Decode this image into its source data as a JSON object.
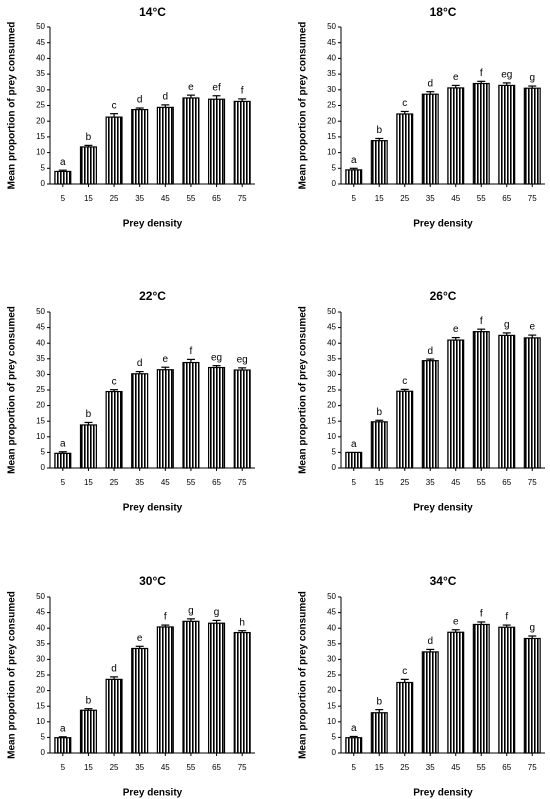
{
  "chart_data": [
    {
      "type": "bar",
      "title": "14°C",
      "xlabel": "Prey density",
      "ylabel": "Mean proportion of prey consumed",
      "categories": [
        "5",
        "15",
        "25",
        "35",
        "45",
        "55",
        "65",
        "75"
      ],
      "values": [
        4.0,
        11.8,
        21.3,
        23.7,
        24.4,
        27.4,
        27.0,
        26.3
      ],
      "errors": [
        0.4,
        0.5,
        1.1,
        0.5,
        0.8,
        0.9,
        1.1,
        0.8
      ],
      "letters": [
        "a",
        "b",
        "c",
        "d",
        "d",
        "e",
        "ef",
        "f"
      ],
      "ylim": [
        0,
        50
      ],
      "yticks": [
        0,
        5,
        10,
        15,
        20,
        25,
        30,
        35,
        40,
        45,
        50
      ],
      "grid": false,
      "bar_color": "#000000"
    },
    {
      "type": "bar",
      "title": "18°C",
      "xlabel": "Prey density",
      "ylabel": "Mean proportion of prey consumed",
      "categories": [
        "5",
        "15",
        "25",
        "35",
        "45",
        "55",
        "65",
        "75"
      ],
      "values": [
        4.5,
        13.8,
        22.3,
        28.6,
        30.6,
        32.0,
        31.4,
        30.5
      ],
      "errors": [
        0.5,
        0.7,
        0.8,
        0.8,
        0.8,
        0.7,
        0.8,
        0.7
      ],
      "letters": [
        "a",
        "b",
        "c",
        "d",
        "e",
        "f",
        "eg",
        "g"
      ],
      "ylim": [
        0,
        50
      ],
      "yticks": [
        0,
        5,
        10,
        15,
        20,
        25,
        30,
        35,
        40,
        45,
        50
      ],
      "grid": false,
      "bar_color": "#000000"
    },
    {
      "type": "bar",
      "title": "22°C",
      "xlabel": "Prey density",
      "ylabel": "Mean proportion of prey consumed",
      "categories": [
        "5",
        "15",
        "25",
        "35",
        "45",
        "55",
        "65",
        "75"
      ],
      "values": [
        4.7,
        13.8,
        24.5,
        30.2,
        31.5,
        33.8,
        32.2,
        31.4
      ],
      "errors": [
        0.5,
        0.8,
        0.6,
        0.7,
        0.8,
        1.0,
        0.6,
        0.7
      ],
      "letters": [
        "a",
        "b",
        "c",
        "d",
        "e",
        "f",
        "eg",
        "eg"
      ],
      "ylim": [
        0,
        50
      ],
      "yticks": [
        0,
        5,
        10,
        15,
        20,
        25,
        30,
        35,
        40,
        45,
        50
      ],
      "grid": false,
      "bar_color": "#000000"
    },
    {
      "type": "bar",
      "title": "26°C",
      "xlabel": "Prey density",
      "ylabel": "Mean proportion of prey consumed",
      "categories": [
        "5",
        "15",
        "25",
        "35",
        "45",
        "55",
        "65",
        "75"
      ],
      "values": [
        5.0,
        14.8,
        24.6,
        34.4,
        41.0,
        43.7,
        42.5,
        41.7
      ],
      "errors": [
        0.0,
        0.5,
        0.6,
        0.5,
        0.8,
        0.8,
        0.8,
        0.9
      ],
      "letters": [
        "a",
        "b",
        "c",
        "d",
        "e",
        "f",
        "g",
        "e"
      ],
      "ylim": [
        0,
        50
      ],
      "yticks": [
        0,
        5,
        10,
        15,
        20,
        25,
        30,
        35,
        40,
        45,
        50
      ],
      "grid": false,
      "bar_color": "#000000"
    },
    {
      "type": "bar",
      "title": "30°C",
      "xlabel": "Prey density",
      "ylabel": "Mean proportion of prey consumed",
      "categories": [
        "5",
        "15",
        "25",
        "35",
        "45",
        "55",
        "65",
        "75"
      ],
      "values": [
        4.9,
        13.7,
        23.6,
        33.5,
        40.4,
        42.2,
        41.6,
        38.6
      ],
      "errors": [
        0.3,
        0.5,
        0.8,
        0.7,
        0.6,
        0.8,
        0.9,
        0.6
      ],
      "letters": [
        "a",
        "b",
        "d",
        "e",
        "f",
        "g",
        "g",
        "h"
      ],
      "ylim": [
        0,
        50
      ],
      "yticks": [
        0,
        5,
        10,
        15,
        20,
        25,
        30,
        35,
        40,
        45,
        50
      ],
      "grid": false,
      "bar_color": "#000000"
    },
    {
      "type": "bar",
      "title": "34°C",
      "xlabel": "Prey density",
      "ylabel": "Mean proportion of prey consumed",
      "categories": [
        "5",
        "15",
        "25",
        "35",
        "45",
        "55",
        "65",
        "75"
      ],
      "values": [
        4.9,
        12.9,
        22.6,
        32.4,
        38.7,
        41.2,
        40.3,
        36.7
      ],
      "errors": [
        0.4,
        1.0,
        1.0,
        0.8,
        0.8,
        0.8,
        0.7,
        0.8
      ],
      "letters": [
        "a",
        "b",
        "c",
        "d",
        "e",
        "f",
        "f",
        "g"
      ],
      "ylim": [
        0,
        50
      ],
      "yticks": [
        0,
        5,
        10,
        15,
        20,
        25,
        30,
        35,
        40,
        45,
        50
      ],
      "grid": false,
      "bar_color": "#000000"
    }
  ]
}
